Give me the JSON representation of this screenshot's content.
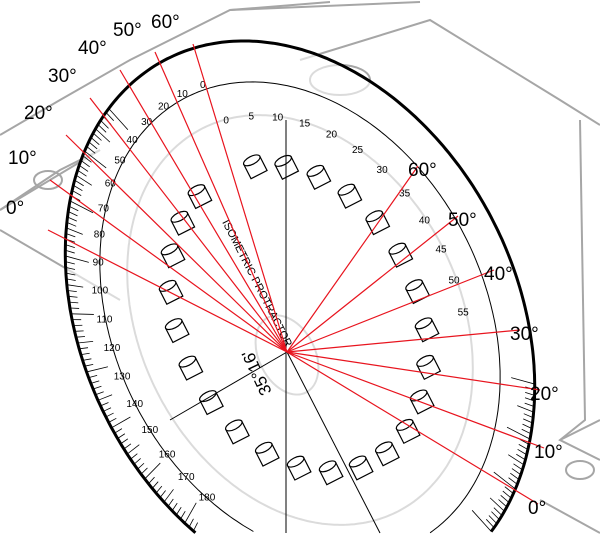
{
  "protractor": {
    "title": "ISOMETRIC PROTRACTOR",
    "angle_label": "35°16'",
    "outer_scale": [
      "0",
      "10",
      "20",
      "30",
      "40",
      "50",
      "60",
      "70",
      "80",
      "90",
      "100",
      "110",
      "120",
      "130",
      "140",
      "150",
      "160",
      "170",
      "180"
    ],
    "inner_scale": [
      "0",
      "5",
      "10",
      "15",
      "20",
      "25",
      "30",
      "35",
      "40",
      "45",
      "50",
      "55"
    ]
  },
  "left_labels": [
    "0°",
    "10°",
    "20°",
    "30°",
    "40°",
    "50°",
    "60°"
  ],
  "right_labels": [
    "60°",
    "50°",
    "40°",
    "30°",
    "20°",
    "10°",
    "0°"
  ],
  "colors": {
    "lines": "#e8141e",
    "outline": "#000000",
    "background_shape": "#a6a6a6"
  }
}
